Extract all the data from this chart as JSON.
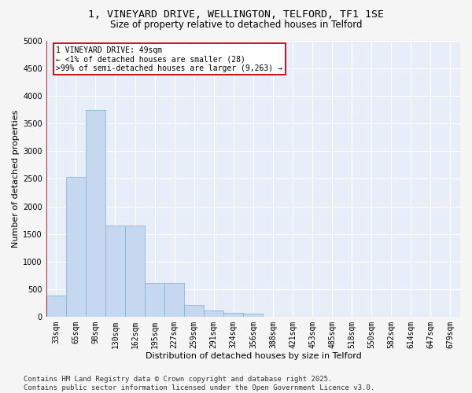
{
  "title_line1": "1, VINEYARD DRIVE, WELLINGTON, TELFORD, TF1 1SE",
  "title_line2": "Size of property relative to detached houses in Telford",
  "xlabel": "Distribution of detached houses by size in Telford",
  "ylabel": "Number of detached properties",
  "categories": [
    "33sqm",
    "65sqm",
    "98sqm",
    "130sqm",
    "162sqm",
    "195sqm",
    "227sqm",
    "259sqm",
    "291sqm",
    "324sqm",
    "356sqm",
    "388sqm",
    "421sqm",
    "453sqm",
    "485sqm",
    "518sqm",
    "550sqm",
    "582sqm",
    "614sqm",
    "647sqm",
    "679sqm"
  ],
  "values": [
    380,
    2530,
    3740,
    1650,
    1650,
    620,
    620,
    220,
    110,
    70,
    55,
    0,
    0,
    0,
    0,
    0,
    0,
    0,
    0,
    0,
    0
  ],
  "bar_color": "#c5d8f0",
  "bar_edge_color": "#7bafd4",
  "annotation_text": "1 VINEYARD DRIVE: 49sqm\n← <1% of detached houses are smaller (28)\n>99% of semi-detached houses are larger (9,263) →",
  "annotation_box_color": "#ffffff",
  "annotation_box_edge": "#cc0000",
  "red_line_color": "#cc0000",
  "ylim": [
    0,
    5000
  ],
  "yticks": [
    0,
    500,
    1000,
    1500,
    2000,
    2500,
    3000,
    3500,
    4000,
    4500,
    5000
  ],
  "background_color": "#e8eef8",
  "plot_bg_color": "#e8eef8",
  "fig_bg_color": "#f5f5f5",
  "grid_color": "#ffffff",
  "title_fontsize": 9.5,
  "subtitle_fontsize": 8.5,
  "axis_label_fontsize": 8,
  "tick_fontsize": 7,
  "annotation_fontsize": 7,
  "footer_fontsize": 6.5,
  "footer_text": "Contains HM Land Registry data © Crown copyright and database right 2025.\nContains public sector information licensed under the Open Government Licence v3.0."
}
